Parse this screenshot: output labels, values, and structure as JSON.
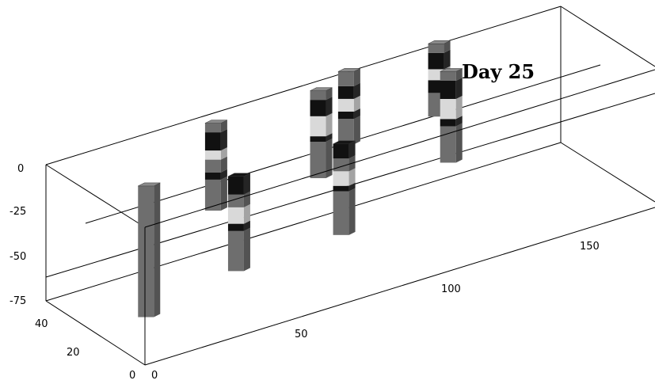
{
  "chart_data": {
    "type": "3d-column",
    "title": "Day 25",
    "x_ticks": [
      "0",
      "50",
      "100",
      "150"
    ],
    "y_ticks": [
      "0",
      "20",
      "40"
    ],
    "z_ticks": [
      "0",
      "-25",
      "-50",
      "-75"
    ],
    "xlim": [
      0,
      170
    ],
    "ylim": [
      0,
      45
    ],
    "zlim": [
      -75,
      0
    ],
    "grid": false,
    "legend": "none",
    "colors": {
      "dark": "#111111",
      "medium": "#6e6e6e",
      "light": "#d9d9d9",
      "column_stroke": "#333333"
    },
    "columns": [
      {
        "x": 15,
        "y": 20,
        "segments": [
          {
            "from": 0,
            "to": -72,
            "tone": "medium"
          }
        ]
      },
      {
        "x": 45,
        "y": 20,
        "segments": [
          {
            "from": -10,
            "to": -20,
            "tone": "dark"
          },
          {
            "from": -20,
            "to": -27,
            "tone": "medium"
          },
          {
            "from": -27,
            "to": -36,
            "tone": "light"
          },
          {
            "from": -36,
            "to": -40,
            "tone": "dark"
          },
          {
            "from": -40,
            "to": -62,
            "tone": "medium"
          }
        ]
      },
      {
        "x": 52,
        "y": 40,
        "segments": [
          {
            "from": 0,
            "to": -5,
            "tone": "medium"
          },
          {
            "from": -5,
            "to": -15,
            "tone": "dark"
          },
          {
            "from": -15,
            "to": -20,
            "tone": "light"
          },
          {
            "from": -20,
            "to": -27,
            "tone": "medium"
          },
          {
            "from": -27,
            "to": -31,
            "tone": "dark"
          },
          {
            "from": -31,
            "to": -48,
            "tone": "medium"
          }
        ]
      },
      {
        "x": 80,
        "y": 20,
        "segments": [
          {
            "from": -10,
            "to": -18,
            "tone": "dark"
          },
          {
            "from": -18,
            "to": -25,
            "tone": "medium"
          },
          {
            "from": -25,
            "to": -33,
            "tone": "light"
          },
          {
            "from": -33,
            "to": -36,
            "tone": "dark"
          },
          {
            "from": -36,
            "to": -60,
            "tone": "medium"
          }
        ]
      },
      {
        "x": 87,
        "y": 40,
        "segments": [
          {
            "from": 0,
            "to": -5,
            "tone": "medium"
          },
          {
            "from": -5,
            "to": -14,
            "tone": "dark"
          },
          {
            "from": -14,
            "to": -25,
            "tone": "light"
          },
          {
            "from": -25,
            "to": -28,
            "tone": "dark"
          },
          {
            "from": -28,
            "to": -48,
            "tone": "medium"
          }
        ]
      },
      {
        "x": 100,
        "y": 45,
        "segments": [
          {
            "from": 0,
            "to": -8,
            "tone": "medium"
          },
          {
            "from": -8,
            "to": -15,
            "tone": "dark"
          },
          {
            "from": -15,
            "to": -22,
            "tone": "light"
          },
          {
            "from": -22,
            "to": -26,
            "tone": "dark"
          },
          {
            "from": -26,
            "to": -40,
            "tone": "medium"
          }
        ]
      },
      {
        "x": 123,
        "y": 30,
        "segments": [
          {
            "from": 0,
            "to": -5,
            "tone": "medium"
          },
          {
            "from": -5,
            "to": -15,
            "tone": "dark"
          },
          {
            "from": -15,
            "to": -26,
            "tone": "light"
          },
          {
            "from": -26,
            "to": -30,
            "tone": "dark"
          },
          {
            "from": -30,
            "to": -50,
            "tone": "medium"
          }
        ]
      },
      {
        "x": 130,
        "y": 45,
        "segments": [
          {
            "from": 0,
            "to": -5,
            "tone": "medium"
          },
          {
            "from": -5,
            "to": -14,
            "tone": "dark"
          },
          {
            "from": -14,
            "to": -20,
            "tone": "light"
          },
          {
            "from": -20,
            "to": -27,
            "tone": "dark"
          },
          {
            "from": -27,
            "to": -40,
            "tone": "medium"
          }
        ]
      }
    ]
  }
}
